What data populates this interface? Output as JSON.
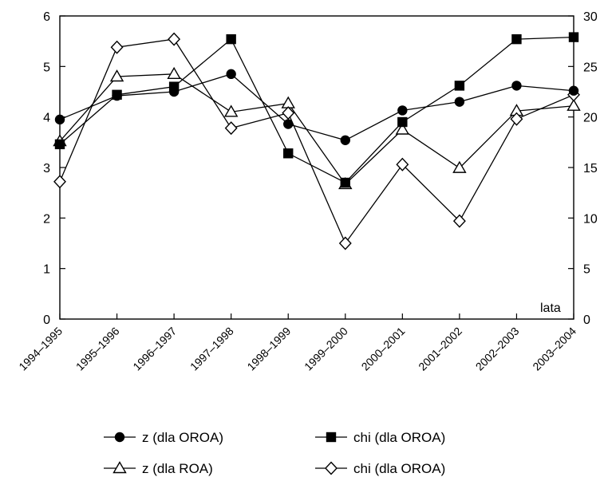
{
  "chart_data": {
    "type": "line",
    "title": "",
    "xlabel": "lata",
    "ylabel": "",
    "categories": [
      "1994–1995",
      "1995–1996",
      "1996–1997",
      "1997–1998",
      "1998–1999",
      "1999–2000",
      "2000–2001",
      "2001–2002",
      "2002–2003",
      "2003–2004"
    ],
    "y_left": {
      "range": [
        0,
        6
      ],
      "ticks": [
        "0",
        "1",
        "2",
        "3",
        "4",
        "5",
        "6"
      ]
    },
    "y_right": {
      "range": [
        0,
        30
      ],
      "ticks": [
        "0",
        "5",
        "10",
        "15",
        "20",
        "25",
        "30"
      ]
    },
    "grid": false,
    "legend_position": "bottom",
    "series": [
      {
        "name": "z (dla OROA)",
        "marker": "filled-circle",
        "axis": "left",
        "values": [
          3.95,
          4.42,
          4.5,
          4.85,
          3.86,
          3.54,
          4.13,
          4.3,
          4.62,
          4.52
        ]
      },
      {
        "name": "chi (dla OROA)",
        "marker": "filled-square",
        "axis": "right",
        "values": [
          17.3,
          22.2,
          23.0,
          27.7,
          16.4,
          13.5,
          19.5,
          23.1,
          27.7,
          27.9
        ]
      },
      {
        "name": "z (dla ROA)",
        "marker": "open-triangle",
        "axis": "left",
        "values": [
          3.52,
          4.8,
          4.85,
          4.1,
          4.27,
          2.67,
          3.75,
          2.99,
          4.12,
          4.22
        ]
      },
      {
        "name": "chi (dla OROA)",
        "marker": "open-diamond",
        "axis": "right",
        "values": [
          13.6,
          26.9,
          27.7,
          18.9,
          20.4,
          7.5,
          15.3,
          9.7,
          19.8,
          22.2
        ]
      }
    ]
  }
}
